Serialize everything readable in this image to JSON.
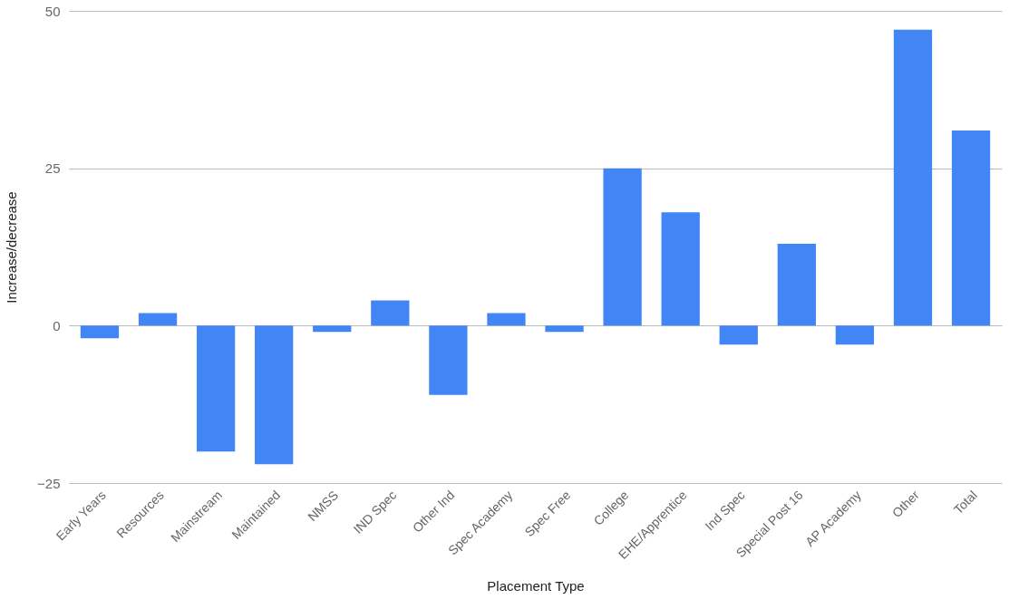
{
  "chart_data": {
    "type": "bar",
    "xlabel": "Placement Type",
    "ylabel": "Increase/decrease",
    "categories": [
      "Early Years",
      "Resources",
      "Mainstream",
      "Maintained",
      "NMSS",
      "IND Spec",
      "Other Ind",
      "Spec Academy",
      "Spec Free",
      "College",
      "EHE/Apprentice",
      "Ind Spec",
      "Special Post 16",
      "AP Academy",
      "Other",
      "Total"
    ],
    "values": [
      -2,
      2,
      -20,
      -22,
      -1,
      4,
      -11,
      2,
      -1,
      25,
      18,
      -3,
      13,
      -3,
      47,
      31
    ],
    "color": "#4285f4",
    "ylim": [
      -25,
      50
    ],
    "yticks": [
      -25,
      0,
      25,
      50
    ],
    "grid": "y"
  }
}
